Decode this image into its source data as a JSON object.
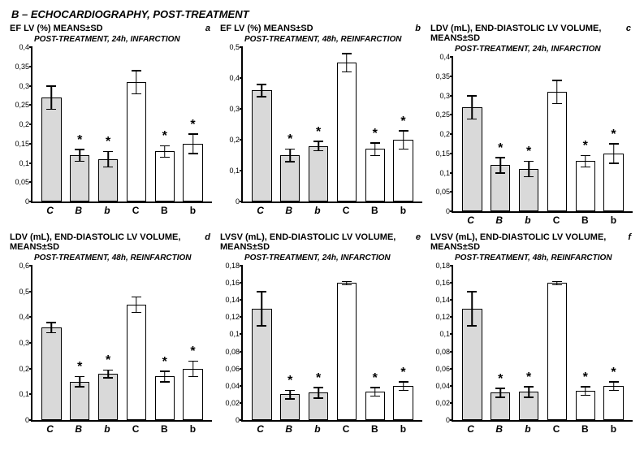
{
  "main_title": "B – ECHOCARDIOGRAPHY, POST-TREATMENT",
  "colors": {
    "grey_fill": "#d9d9d9",
    "white_fill": "#ffffff",
    "stroke": "#000000",
    "background": "#ffffff"
  },
  "style": {
    "title_fontsize": 13,
    "panel_title_fontsize": 11,
    "sub_fontsize": 10,
    "tick_fontsize": 9,
    "xlabel_fontsize": 12,
    "bar_border_width": 1.5,
    "err_cap_width": 12
  },
  "x_categories": [
    {
      "label": "C",
      "italic": true,
      "fill": "grey"
    },
    {
      "label": "B",
      "italic": true,
      "fill": "grey"
    },
    {
      "label": "b",
      "italic": true,
      "fill": "grey"
    },
    {
      "label": "C",
      "italic": false,
      "fill": "white"
    },
    {
      "label": "B",
      "italic": false,
      "fill": "white"
    },
    {
      "label": "b",
      "italic": false,
      "fill": "white"
    }
  ],
  "panels": [
    {
      "id": "a",
      "title": "EF LV (%) MEANS±SD",
      "letter": "a",
      "subtitle": "POST-TREATMENT, 24h, INFARCTION",
      "ymax": 0.4,
      "ytick_step": 0.05,
      "bars": [
        {
          "v": 0.27,
          "err": 0.03,
          "star": false
        },
        {
          "v": 0.12,
          "err": 0.015,
          "star": true
        },
        {
          "v": 0.11,
          "err": 0.02,
          "star": true
        },
        {
          "v": 0.31,
          "err": 0.03,
          "star": false
        },
        {
          "v": 0.13,
          "err": 0.015,
          "star": true
        },
        {
          "v": 0.15,
          "err": 0.025,
          "star": true
        }
      ]
    },
    {
      "id": "b",
      "title": "EF LV (%) MEANS±SD",
      "letter": "b",
      "subtitle": "POST-TREATMENT, 48h, REINFARCTION",
      "ymax": 0.5,
      "ytick_step": 0.1,
      "bars": [
        {
          "v": 0.36,
          "err": 0.02,
          "star": false
        },
        {
          "v": 0.15,
          "err": 0.02,
          "star": true
        },
        {
          "v": 0.18,
          "err": 0.015,
          "star": true
        },
        {
          "v": 0.45,
          "err": 0.03,
          "star": false
        },
        {
          "v": 0.17,
          "err": 0.02,
          "star": true
        },
        {
          "v": 0.2,
          "err": 0.03,
          "star": true
        }
      ]
    },
    {
      "id": "c",
      "title": "LDV (mL), END-DIASTOLIC LV VOLUME, MEANS±SD",
      "letter": "c",
      "subtitle": "POST-TREATMENT, 24h, INFARCTION",
      "ymax": 0.4,
      "ytick_step": 0.05,
      "bars": [
        {
          "v": 0.27,
          "err": 0.03,
          "star": false
        },
        {
          "v": 0.12,
          "err": 0.02,
          "star": true
        },
        {
          "v": 0.11,
          "err": 0.02,
          "star": true
        },
        {
          "v": 0.31,
          "err": 0.03,
          "star": false
        },
        {
          "v": 0.13,
          "err": 0.015,
          "star": true
        },
        {
          "v": 0.15,
          "err": 0.025,
          "star": true
        }
      ]
    },
    {
      "id": "d",
      "title": "LDV (mL), END-DIASTOLIC LV VOLUME, MEANS±SD",
      "letter": "d",
      "subtitle": "POST-TREATMENT, 48h, REINFARCTION",
      "ymax": 0.6,
      "ytick_step": 0.1,
      "bars": [
        {
          "v": 0.36,
          "err": 0.02,
          "star": false
        },
        {
          "v": 0.15,
          "err": 0.02,
          "star": true
        },
        {
          "v": 0.18,
          "err": 0.015,
          "star": true
        },
        {
          "v": 0.45,
          "err": 0.03,
          "star": false
        },
        {
          "v": 0.17,
          "err": 0.02,
          "star": true
        },
        {
          "v": 0.2,
          "err": 0.03,
          "star": true
        }
      ]
    },
    {
      "id": "e",
      "title": "LVSV (mL), END-DIASTOLIC LV VOLUME, MEANS±SD",
      "letter": "e",
      "subtitle": "POST-TREATMENT, 24h, INFARCTION",
      "ymax": 0.18,
      "ytick_step": 0.02,
      "bars": [
        {
          "v": 0.13,
          "err": 0.02,
          "star": false
        },
        {
          "v": 0.03,
          "err": 0.005,
          "star": true
        },
        {
          "v": 0.032,
          "err": 0.006,
          "star": true
        },
        {
          "v": 0.16,
          "err": 0.002,
          "star": false
        },
        {
          "v": 0.033,
          "err": 0.005,
          "star": true
        },
        {
          "v": 0.04,
          "err": 0.005,
          "star": true
        }
      ]
    },
    {
      "id": "f",
      "title": "LVSV (mL), END-DIASTOLIC LV VOLUME, MEANS±SD",
      "letter": "f",
      "subtitle": "POST-TREATMENT, 48h, REINFARCTION",
      "ymax": 0.18,
      "ytick_step": 0.02,
      "bars": [
        {
          "v": 0.13,
          "err": 0.02,
          "star": false
        },
        {
          "v": 0.032,
          "err": 0.005,
          "star": true
        },
        {
          "v": 0.033,
          "err": 0.006,
          "star": true
        },
        {
          "v": 0.16,
          "err": 0.002,
          "star": false
        },
        {
          "v": 0.034,
          "err": 0.005,
          "star": true
        },
        {
          "v": 0.04,
          "err": 0.005,
          "star": true
        }
      ]
    }
  ]
}
